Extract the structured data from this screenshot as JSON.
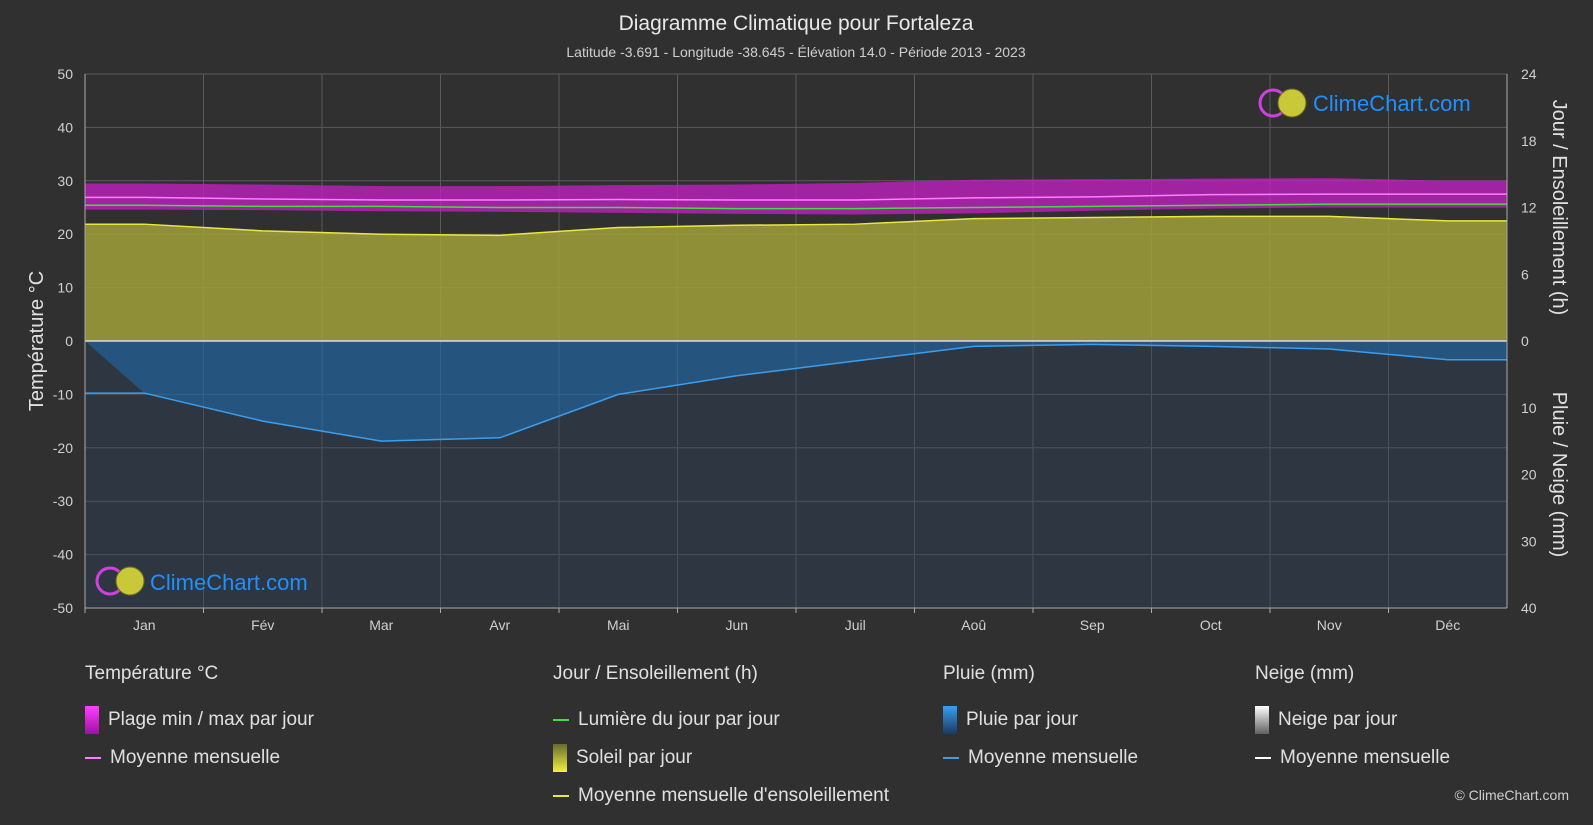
{
  "title": "Diagramme Climatique pour Fortaleza",
  "subtitle": "Latitude -3.691 - Longitude -38.645 - Élévation 14.0 - Période 2013 - 2023",
  "watermark": "ClimeChart.com",
  "copyright": "© ClimeChart.com",
  "colors": {
    "background": "#303030",
    "temp_band": "#c81fc8",
    "temp_mean": "#ff7dff",
    "daylight": "#3ee03e",
    "sunshine_fill": "#9a9a3a",
    "sunshine_mean": "#e8e840",
    "rain_fill": "#1f6fb0",
    "rain_mean": "#3a9ef0",
    "snow": "#ffffff",
    "watermark": "#1e90ff"
  },
  "chart_data": {
    "type": "area",
    "months": [
      "Jan",
      "Fév",
      "Mar",
      "Avr",
      "Mai",
      "Jun",
      "Juil",
      "Aoû",
      "Sep",
      "Oct",
      "Nov",
      "Déc"
    ],
    "axes": {
      "left": {
        "label": "Température °C",
        "min": -50,
        "max": 50,
        "ticks": [
          50,
          40,
          30,
          20,
          10,
          0,
          -10,
          -20,
          -30,
          -40,
          -50
        ]
      },
      "right_top": {
        "label": "Jour / Ensoleillement (h)",
        "min": 0,
        "max": 24,
        "ticks": [
          24,
          18,
          12,
          6,
          0
        ]
      },
      "right_bottom": {
        "label": "Pluie / Neige (mm)",
        "min": 0,
        "max": 40,
        "ticks": [
          0,
          10,
          20,
          30,
          40
        ]
      }
    },
    "grid": true,
    "series": [
      {
        "name": "Plage min / max par jour",
        "kind": "band",
        "unit": "°C",
        "min": [
          24.6,
          24.5,
          24.3,
          24.2,
          24.0,
          23.8,
          23.7,
          23.9,
          24.4,
          24.8,
          25.0,
          25.0
        ],
        "max": [
          29.5,
          29.3,
          29.0,
          29.0,
          29.2,
          29.3,
          29.6,
          30.2,
          30.3,
          30.4,
          30.5,
          30.0
        ]
      },
      {
        "name": "Moyenne mensuelle",
        "kind": "temp_mean",
        "unit": "°C",
        "values": [
          26.9,
          26.6,
          26.4,
          26.4,
          26.5,
          26.4,
          26.4,
          26.8,
          27.0,
          27.4,
          27.5,
          27.5
        ]
      },
      {
        "name": "Lumière du jour par jour",
        "kind": "daylight",
        "unit": "h",
        "values": [
          12.2,
          12.1,
          12.1,
          12.0,
          12.0,
          11.9,
          11.9,
          12.0,
          12.1,
          12.2,
          12.3,
          12.3
        ]
      },
      {
        "name": "Moyenne mensuelle d'ensoleillement",
        "kind": "sunshine",
        "unit": "h",
        "values": [
          10.5,
          9.9,
          9.6,
          9.5,
          10.2,
          10.4,
          10.5,
          11.0,
          11.1,
          11.2,
          11.2,
          10.8
        ]
      },
      {
        "name": "Moyenne mensuelle",
        "kind": "rain",
        "unit": "mm",
        "values": [
          7.8,
          12.0,
          15.0,
          14.5,
          8.0,
          5.2,
          3.0,
          0.8,
          0.5,
          0.8,
          1.2,
          2.8
        ]
      },
      {
        "name": "Moyenne mensuelle",
        "kind": "snow",
        "unit": "mm",
        "values": [
          0,
          0,
          0,
          0,
          0,
          0,
          0,
          0,
          0,
          0,
          0,
          0
        ]
      }
    ]
  },
  "legend": {
    "temperature": {
      "title": "Température °C",
      "items": [
        "Plage min / max par jour",
        "Moyenne mensuelle"
      ]
    },
    "sun": {
      "title": "Jour / Ensoleillement (h)",
      "items": [
        "Lumière du jour par jour",
        "Soleil par jour",
        "Moyenne mensuelle d'ensoleillement"
      ]
    },
    "rain": {
      "title": "Pluie (mm)",
      "items": [
        "Pluie par jour",
        "Moyenne mensuelle"
      ]
    },
    "snow": {
      "title": "Neige (mm)",
      "items": [
        "Neige par jour",
        "Moyenne mensuelle"
      ]
    }
  }
}
